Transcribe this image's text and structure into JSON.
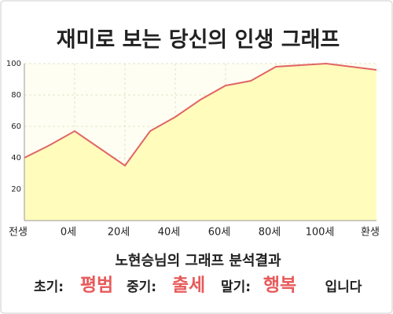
{
  "chart_data": {
    "type": "area",
    "title": "재미로 보는 당신의 인생 그래프",
    "categories": [
      "전생",
      null,
      "0세",
      null,
      "20세",
      null,
      "40세",
      null,
      "60세",
      null,
      "80세",
      null,
      "100세",
      null,
      "환생"
    ],
    "series": [
      {
        "color": "#e06666",
        "fill": "#fffcbc",
        "values": [
          40,
          48,
          57,
          46,
          35,
          57,
          66,
          77,
          86,
          89,
          98,
          99,
          100,
          98,
          96
        ]
      }
    ],
    "ylim": [
      0,
      100
    ],
    "yticks": [
      20,
      40,
      60,
      80,
      100
    ],
    "grid": true
  },
  "result": {
    "title": "노현승님의 그래프 분석결과",
    "items": [
      {
        "label": "초기:",
        "value": "평범"
      },
      {
        "label": "중기:",
        "value": "출세"
      },
      {
        "label": "말기:",
        "value": "행복"
      }
    ],
    "suffix": "입니다"
  }
}
